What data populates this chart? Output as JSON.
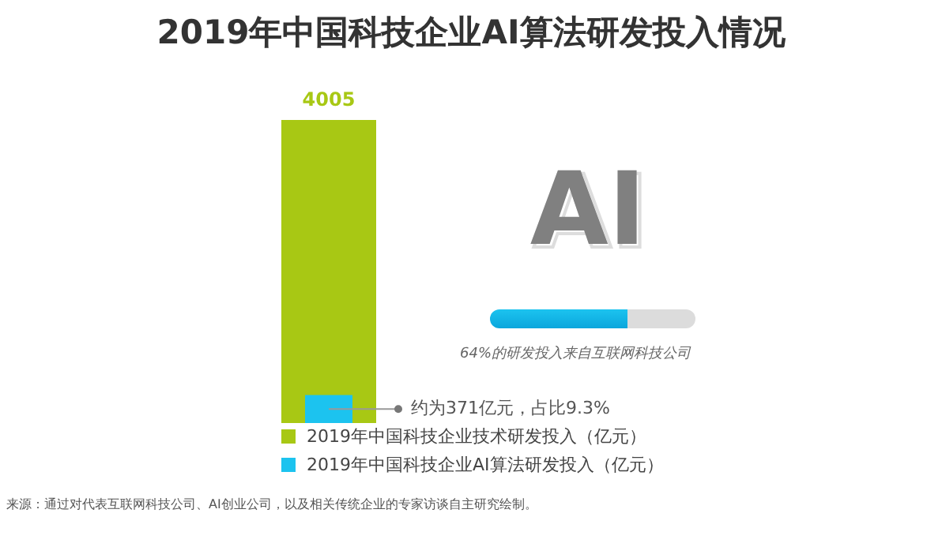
{
  "chart_data": {
    "type": "bar",
    "title": "2019年中国科技企业AI算法研发投入情况",
    "categories": [
      null
    ],
    "series": [
      {
        "name": "2019年中国科技企业技术研发投入（亿元）",
        "color": "#a8c814",
        "values": [
          4005
        ],
        "value_labels": [
          "4005"
        ]
      },
      {
        "name": "2019年中国科技企业AI算法研发投入（亿元）",
        "color": "#1cc3ef",
        "values": [
          371
        ],
        "value_labels": [
          "约为371亿元，占比9.3%"
        ]
      }
    ],
    "legend": "bottom",
    "annotations": [
      "AI",
      "64%的研发投入来自互联网科技公司",
      "来源：通过对代表互联网科技公司、AI创业公司，以及相关传统企业的专家访谈自主研究绘制。"
    ]
  }
}
